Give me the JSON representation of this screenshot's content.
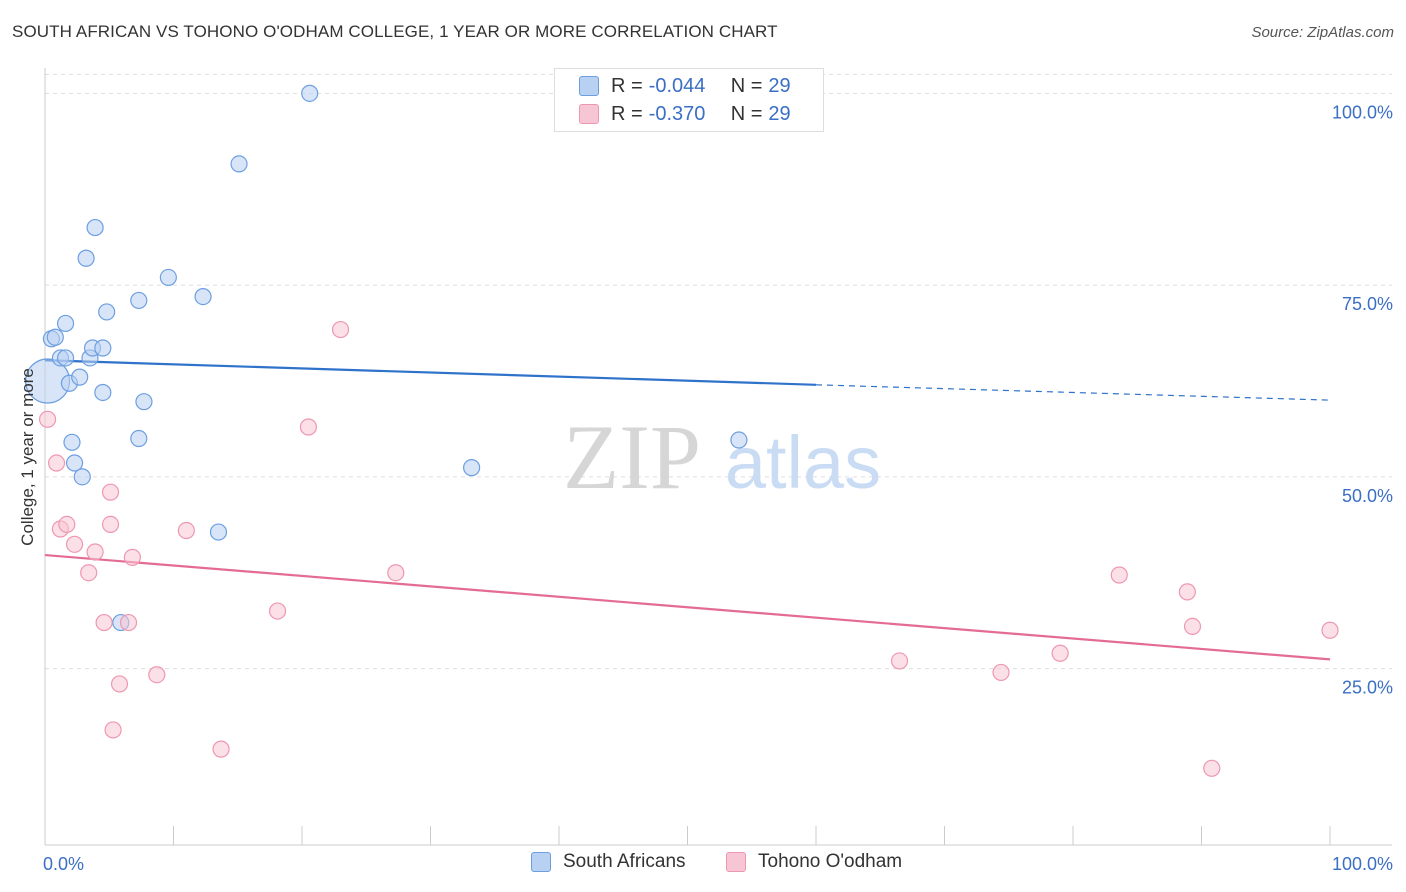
{
  "header": {
    "title": "SOUTH AFRICAN VS TOHONO O'ODHAM COLLEGE, 1 YEAR OR MORE CORRELATION CHART",
    "source": "Source: ZipAtlas.com"
  },
  "watermark": {
    "zip": "ZIP",
    "atlas": "atlas"
  },
  "legend": {
    "rows": [
      {
        "r_label": "R = ",
        "r_value": "-0.044",
        "n_label": "N = ",
        "n_value": "29"
      },
      {
        "r_label": "R = ",
        "r_value": "-0.370",
        "n_label": "N = ",
        "n_value": "29"
      }
    ]
  },
  "bottom_legend": {
    "south_africans": "South Africans",
    "tohono": "Tohono O'odham"
  },
  "colors": {
    "blue_fill": "#b8d0f2",
    "blue_stroke": "#6d9fe0",
    "blue_line": "#2f72c9",
    "pink_fill": "#f7c6d4",
    "pink_stroke": "#ee97b2",
    "pink_line": "#e46b93",
    "axis_text": "#3a6fc4",
    "grid": "#dddddd"
  },
  "chart_data": {
    "type": "scatter",
    "title": "SOUTH AFRICAN VS TOHONO O'ODHAM COLLEGE, 1 YEAR OR MORE CORRELATION CHART",
    "xlabel": "",
    "ylabel": "College, 1 year or more",
    "xlim": [
      0,
      100
    ],
    "ylim": [
      2,
      102
    ],
    "x_tick_labels": [
      "0.0%",
      "100.0%"
    ],
    "y_ticks": [
      25,
      50,
      75,
      100
    ],
    "y_tick_labels": [
      "25.0%",
      "50.0%",
      "75.0%",
      "100.0%"
    ],
    "grid": true,
    "series": [
      {
        "name": "South Africans",
        "r": -0.044,
        "n": 29,
        "points": [
          {
            "x": 0.2,
            "y": 62.5,
            "big": true
          },
          {
            "x": 0.5,
            "y": 68.0
          },
          {
            "x": 0.8,
            "y": 68.2
          },
          {
            "x": 1.2,
            "y": 65.5
          },
          {
            "x": 1.6,
            "y": 65.5
          },
          {
            "x": 1.6,
            "y": 70.0
          },
          {
            "x": 1.9,
            "y": 62.2
          },
          {
            "x": 2.1,
            "y": 54.5
          },
          {
            "x": 2.3,
            "y": 51.8
          },
          {
            "x": 2.7,
            "y": 63.0
          },
          {
            "x": 2.9,
            "y": 50.0
          },
          {
            "x": 3.2,
            "y": 78.5
          },
          {
            "x": 3.5,
            "y": 65.5
          },
          {
            "x": 3.7,
            "y": 66.8
          },
          {
            "x": 3.9,
            "y": 82.5
          },
          {
            "x": 4.5,
            "y": 61.0
          },
          {
            "x": 4.5,
            "y": 66.8
          },
          {
            "x": 4.8,
            "y": 71.5
          },
          {
            "x": 5.9,
            "y": 31.0
          },
          {
            "x": 7.3,
            "y": 73.0
          },
          {
            "x": 7.3,
            "y": 55.0
          },
          {
            "x": 7.7,
            "y": 59.8
          },
          {
            "x": 9.6,
            "y": 76.0
          },
          {
            "x": 12.3,
            "y": 73.5
          },
          {
            "x": 13.5,
            "y": 42.8
          },
          {
            "x": 15.1,
            "y": 90.8
          },
          {
            "x": 20.6,
            "y": 100.0
          },
          {
            "x": 33.2,
            "y": 51.2
          },
          {
            "x": 54.0,
            "y": 54.8
          }
        ],
        "trend": {
          "x0": 0,
          "y0": 65.2,
          "x1": 60,
          "y1": 62.0,
          "dash_to_x": 100,
          "dash_to_y": 60.0
        }
      },
      {
        "name": "Tohono O'odham",
        "r": -0.37,
        "n": 29,
        "points": [
          {
            "x": 0.2,
            "y": 57.5
          },
          {
            "x": 0.9,
            "y": 51.8
          },
          {
            "x": 1.2,
            "y": 43.2
          },
          {
            "x": 1.7,
            "y": 43.8
          },
          {
            "x": 2.3,
            "y": 41.2
          },
          {
            "x": 3.4,
            "y": 37.5
          },
          {
            "x": 3.9,
            "y": 40.2
          },
          {
            "x": 4.6,
            "y": 31.0
          },
          {
            "x": 5.1,
            "y": 43.8
          },
          {
            "x": 5.1,
            "y": 48.0
          },
          {
            "x": 5.3,
            "y": 17.0
          },
          {
            "x": 5.8,
            "y": 23.0
          },
          {
            "x": 6.5,
            "y": 31.0
          },
          {
            "x": 6.8,
            "y": 39.5
          },
          {
            "x": 8.7,
            "y": 24.2
          },
          {
            "x": 11.0,
            "y": 43.0
          },
          {
            "x": 13.7,
            "y": 14.5
          },
          {
            "x": 18.1,
            "y": 32.5
          },
          {
            "x": 20.5,
            "y": 56.5
          },
          {
            "x": 23.0,
            "y": 69.2
          },
          {
            "x": 27.3,
            "y": 37.5
          },
          {
            "x": 66.5,
            "y": 26.0
          },
          {
            "x": 74.4,
            "y": 24.5
          },
          {
            "x": 79.0,
            "y": 27.0
          },
          {
            "x": 83.6,
            "y": 37.2
          },
          {
            "x": 88.9,
            "y": 35.0
          },
          {
            "x": 89.3,
            "y": 30.5
          },
          {
            "x": 90.8,
            "y": 12.0
          },
          {
            "x": 100.0,
            "y": 30.0
          }
        ],
        "trend": {
          "x0": 0,
          "y0": 39.8,
          "x1": 100,
          "y1": 26.2
        }
      }
    ]
  }
}
